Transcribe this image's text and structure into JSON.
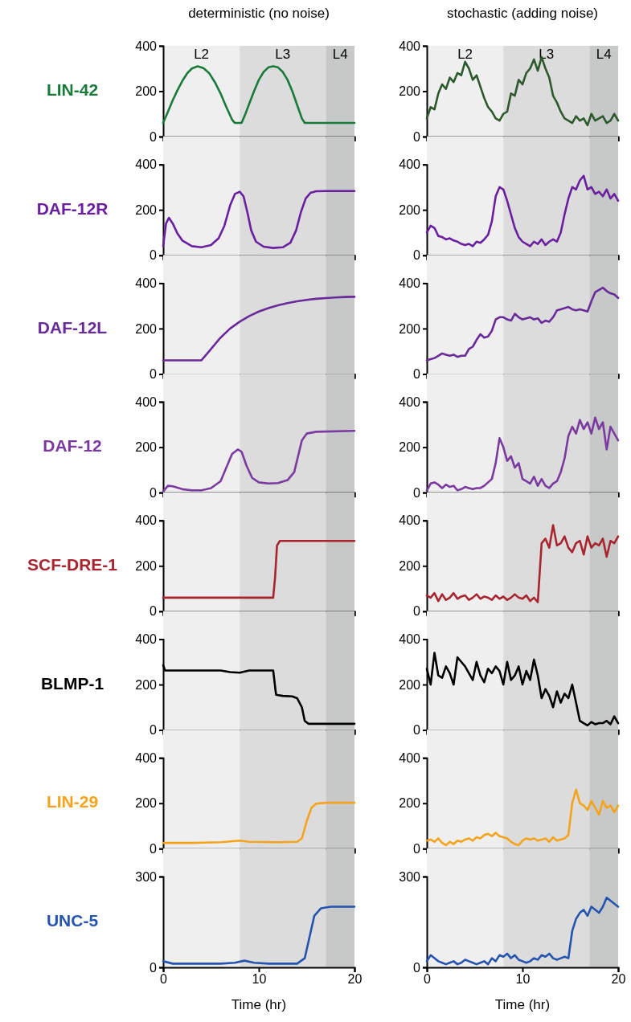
{
  "chart_data": [
    {
      "type": "line",
      "title": "deterministic (no noise)",
      "ylabel": "LIN-42",
      "x": [
        0,
        0.5,
        1,
        1.5,
        2,
        2.5,
        3,
        3.6,
        4.2,
        4.8,
        5.4,
        6,
        6.6,
        7.2,
        7.5,
        8.2,
        8.6,
        9,
        9.5,
        10,
        10.5,
        11,
        11.5,
        12,
        12.5,
        13,
        13.5,
        14,
        14.5,
        14.8,
        20
      ],
      "series": [
        {
          "color": "#1a7a3a",
          "values": [
            60,
            110,
            160,
            205,
            245,
            278,
            300,
            310,
            302,
            280,
            240,
            190,
            130,
            75,
            60,
            60,
            100,
            145,
            200,
            250,
            285,
            305,
            310,
            305,
            285,
            250,
            200,
            140,
            80,
            60,
            60
          ]
        }
      ],
      "xlim": [
        0,
        20
      ],
      "xticks": [
        0,
        10,
        20
      ],
      "ylim": [
        0,
        400
      ],
      "yticks": [
        0,
        200,
        400
      ],
      "tick_labels": "y",
      "bands": [
        {
          "axis": "x",
          "from": 0,
          "to": 8,
          "label": "L2",
          "color": "#efefef"
        },
        {
          "axis": "x",
          "from": 8,
          "to": 17,
          "label": "L3",
          "color": "#dcdcdc"
        },
        {
          "axis": "x",
          "from": 17,
          "to": 20,
          "label": "L4",
          "color": "#c7c9c9"
        }
      ]
    },
    {
      "type": "line",
      "title": "stochastic (adding noise)",
      "x": [
        0,
        0.4,
        0.8,
        1.2,
        1.6,
        2,
        2.4,
        2.8,
        3.2,
        3.6,
        4,
        4.4,
        4.8,
        5.2,
        5.6,
        6,
        6.4,
        6.8,
        7.2,
        7.6,
        8,
        8.4,
        8.8,
        9.2,
        9.6,
        10,
        10.4,
        10.8,
        11.2,
        11.6,
        12,
        12.4,
        12.8,
        13.2,
        13.6,
        14,
        14.4,
        14.8,
        15.2,
        15.6,
        16,
        16.4,
        16.8,
        17.2,
        17.6,
        18,
        18.4,
        18.8,
        19.2,
        19.6,
        20
      ],
      "series": [
        {
          "color": "#2d5a2d",
          "values": [
            80,
            130,
            120,
            190,
            230,
            210,
            260,
            240,
            280,
            270,
            330,
            300,
            250,
            270,
            220,
            170,
            130,
            110,
            80,
            70,
            100,
            110,
            190,
            180,
            250,
            230,
            280,
            300,
            340,
            290,
            350,
            300,
            260,
            180,
            150,
            110,
            80,
            70,
            60,
            90,
            70,
            80,
            50,
            100,
            70,
            80,
            90,
            60,
            70,
            100,
            70
          ]
        }
      ],
      "xlim": [
        0,
        20
      ],
      "xticks": [
        0,
        10,
        20
      ],
      "ylim": [
        0,
        400
      ],
      "yticks": [
        0,
        200,
        400
      ],
      "tick_labels": "y",
      "bands": [
        {
          "axis": "x",
          "from": 0,
          "to": 8,
          "label": "L2",
          "color": "#efefef"
        },
        {
          "axis": "x",
          "from": 8,
          "to": 17,
          "label": "L3",
          "color": "#dcdcdc"
        },
        {
          "axis": "x",
          "from": 17,
          "to": 20,
          "label": "L4",
          "color": "#c7c9c9"
        }
      ]
    },
    {
      "type": "line",
      "ylabel": "DAF-12R",
      "x": [
        0,
        0.3,
        0.6,
        1,
        1.5,
        2,
        3,
        4,
        5,
        5.8,
        6.4,
        7,
        7.5,
        8,
        8.4,
        8.8,
        9.2,
        9.7,
        10.5,
        11.5,
        12.5,
        13.3,
        13.9,
        14.4,
        14.9,
        15.4,
        16,
        17,
        20
      ],
      "series": [
        {
          "color": "#6a1fa0",
          "values": [
            40,
            140,
            165,
            140,
            95,
            65,
            40,
            35,
            45,
            75,
            130,
            220,
            270,
            280,
            260,
            190,
            110,
            60,
            38,
            32,
            35,
            55,
            110,
            190,
            250,
            275,
            282,
            283,
            283
          ]
        }
      ],
      "xlim": [
        0,
        20
      ],
      "xticks": [
        0,
        10,
        20
      ],
      "ylim": [
        0,
        400
      ],
      "yticks": [
        0,
        200,
        400
      ],
      "tick_labels": "y",
      "bands": [
        {
          "axis": "x",
          "from": 0,
          "to": 8,
          "color": "#efefef"
        },
        {
          "axis": "x",
          "from": 8,
          "to": 17,
          "color": "#dcdcdc"
        },
        {
          "axis": "x",
          "from": 17,
          "to": 20,
          "color": "#c7c9c9"
        }
      ]
    },
    {
      "type": "line",
      "x": [
        0,
        0.4,
        0.8,
        1.2,
        1.6,
        2,
        2.4,
        2.8,
        3.2,
        3.6,
        4,
        4.4,
        4.8,
        5.2,
        5.6,
        6,
        6.4,
        6.8,
        7.2,
        7.6,
        8,
        8.4,
        8.8,
        9.2,
        9.6,
        10,
        10.4,
        10.8,
        11.2,
        11.6,
        12,
        12.4,
        12.8,
        13.2,
        13.6,
        14,
        14.4,
        14.8,
        15.2,
        15.6,
        16,
        16.4,
        16.8,
        17.2,
        17.6,
        18,
        18.4,
        18.8,
        19.2,
        19.6,
        20
      ],
      "series": [
        {
          "color": "#6a1fa0",
          "values": [
            100,
            130,
            120,
            85,
            80,
            70,
            75,
            65,
            60,
            50,
            45,
            50,
            40,
            60,
            55,
            70,
            90,
            150,
            260,
            300,
            290,
            240,
            180,
            120,
            80,
            60,
            50,
            40,
            60,
            50,
            70,
            45,
            60,
            70,
            60,
            100,
            180,
            250,
            300,
            290,
            330,
            350,
            290,
            300,
            270,
            280,
            260,
            290,
            250,
            270,
            240
          ]
        }
      ],
      "xlim": [
        0,
        20
      ],
      "xticks": [
        0,
        10,
        20
      ],
      "ylim": [
        0,
        400
      ],
      "yticks": [
        0,
        200,
        400
      ],
      "tick_labels": "y",
      "bands": [
        {
          "axis": "x",
          "from": 0,
          "to": 8,
          "color": "#efefef"
        },
        {
          "axis": "x",
          "from": 8,
          "to": 17,
          "color": "#dcdcdc"
        },
        {
          "axis": "x",
          "from": 17,
          "to": 20,
          "color": "#c7c9c9"
        }
      ]
    },
    {
      "type": "line",
      "ylabel": "DAF-12L",
      "x": [
        0,
        4,
        5,
        6,
        7,
        8,
        9,
        10,
        11,
        12,
        13,
        14,
        15,
        16,
        17,
        18,
        19,
        20
      ],
      "series": [
        {
          "color": "#6a2a9a",
          "values": [
            60,
            60,
            110,
            160,
            200,
            230,
            255,
            275,
            290,
            302,
            312,
            320,
            326,
            331,
            334,
            337,
            339,
            340
          ]
        }
      ],
      "xlim": [
        0,
        20
      ],
      "xticks": [
        0,
        10,
        20
      ],
      "ylim": [
        0,
        400
      ],
      "yticks": [
        0,
        200,
        400
      ],
      "tick_labels": "y",
      "bands": [
        {
          "axis": "x",
          "from": 0,
          "to": 8,
          "color": "#efefef"
        },
        {
          "axis": "x",
          "from": 8,
          "to": 17,
          "color": "#dcdcdc"
        },
        {
          "axis": "x",
          "from": 17,
          "to": 20,
          "color": "#c7c9c9"
        }
      ]
    },
    {
      "type": "line",
      "x": [
        0,
        0.4,
        0.8,
        1.2,
        1.6,
        2,
        2.4,
        2.8,
        3.2,
        3.6,
        4,
        4.4,
        4.8,
        5.2,
        5.6,
        6,
        6.4,
        6.8,
        7.2,
        7.6,
        8,
        8.4,
        8.8,
        9.2,
        9.6,
        10,
        10.4,
        10.8,
        11.2,
        11.6,
        12,
        12.4,
        12.8,
        13.2,
        13.6,
        14,
        14.4,
        14.8,
        15.2,
        15.6,
        16,
        16.4,
        16.8,
        17.2,
        17.6,
        18,
        18.4,
        18.8,
        19.2,
        19.6,
        20
      ],
      "series": [
        {
          "color": "#6a2a9a",
          "values": [
            60,
            65,
            70,
            80,
            90,
            85,
            80,
            85,
            75,
            80,
            80,
            110,
            120,
            150,
            175,
            160,
            165,
            190,
            240,
            250,
            250,
            240,
            235,
            265,
            250,
            240,
            245,
            250,
            240,
            245,
            225,
            235,
            230,
            250,
            280,
            285,
            290,
            295,
            285,
            280,
            285,
            280,
            275,
            320,
            360,
            370,
            380,
            365,
            355,
            350,
            335
          ]
        }
      ],
      "xlim": [
        0,
        20
      ],
      "xticks": [
        0,
        10,
        20
      ],
      "ylim": [
        0,
        400
      ],
      "yticks": [
        0,
        200,
        400
      ],
      "tick_labels": "y",
      "bands": [
        {
          "axis": "x",
          "from": 0,
          "to": 8,
          "color": "#efefef"
        },
        {
          "axis": "x",
          "from": 8,
          "to": 17,
          "color": "#dcdcdc"
        },
        {
          "axis": "x",
          "from": 17,
          "to": 20,
          "color": "#c7c9c9"
        }
      ]
    },
    {
      "type": "line",
      "ylabel": "DAF-12",
      "x": [
        0,
        0.5,
        1,
        2,
        3,
        4,
        5,
        6,
        6.6,
        7.2,
        7.8,
        8.2,
        8.7,
        9.3,
        10,
        11,
        12,
        13,
        13.7,
        14.1,
        14.5,
        15,
        16,
        20
      ],
      "series": [
        {
          "color": "#7b3aa0",
          "values": [
            5,
            30,
            28,
            15,
            10,
            10,
            20,
            50,
            110,
            170,
            190,
            180,
            120,
            65,
            45,
            40,
            42,
            55,
            90,
            160,
            230,
            260,
            268,
            272
          ]
        }
      ],
      "xlim": [
        0,
        20
      ],
      "xticks": [
        0,
        10,
        20
      ],
      "ylim": [
        0,
        400
      ],
      "yticks": [
        0,
        200,
        400
      ],
      "tick_labels": "y",
      "bands": [
        {
          "axis": "x",
          "from": 0,
          "to": 8,
          "color": "#efefef"
        },
        {
          "axis": "x",
          "from": 8,
          "to": 17,
          "color": "#dcdcdc"
        },
        {
          "axis": "x",
          "from": 17,
          "to": 20,
          "color": "#c7c9c9"
        }
      ]
    },
    {
      "type": "line",
      "x": [
        0,
        0.4,
        0.8,
        1.2,
        1.6,
        2,
        2.4,
        2.8,
        3.2,
        3.6,
        4,
        4.4,
        4.8,
        5.2,
        5.6,
        6,
        6.4,
        6.8,
        7.2,
        7.6,
        8,
        8.4,
        8.8,
        9.2,
        9.6,
        10,
        10.4,
        10.8,
        11.2,
        11.6,
        12,
        12.4,
        12.8,
        13.2,
        13.6,
        14,
        14.4,
        14.8,
        15.2,
        15.6,
        16,
        16.4,
        16.8,
        17.2,
        17.6,
        18,
        18.4,
        18.8,
        19.2,
        19.6,
        20
      ],
      "series": [
        {
          "color": "#7b3aa0",
          "values": [
            10,
            40,
            45,
            35,
            20,
            35,
            25,
            30,
            10,
            15,
            25,
            20,
            15,
            20,
            20,
            30,
            45,
            60,
            130,
            240,
            200,
            140,
            160,
            110,
            130,
            60,
            50,
            40,
            70,
            30,
            60,
            30,
            20,
            40,
            50,
            90,
            150,
            250,
            290,
            260,
            320,
            280,
            310,
            260,
            330,
            280,
            310,
            190,
            290,
            260,
            230
          ]
        }
      ],
      "xlim": [
        0,
        20
      ],
      "xticks": [
        0,
        10,
        20
      ],
      "ylim": [
        0,
        400
      ],
      "yticks": [
        0,
        200,
        400
      ],
      "tick_labels": "y",
      "bands": [
        {
          "axis": "x",
          "from": 0,
          "to": 8,
          "color": "#efefef"
        },
        {
          "axis": "x",
          "from": 8,
          "to": 17,
          "color": "#dcdcdc"
        },
        {
          "axis": "x",
          "from": 17,
          "to": 20,
          "color": "#c7c9c9"
        }
      ]
    },
    {
      "type": "line",
      "ylabel": "SCF-DRE-1",
      "x": [
        0,
        11.5,
        11.7,
        11.9,
        12.2,
        20
      ],
      "series": [
        {
          "color": "#a8242f",
          "values": [
            60,
            60,
            150,
            290,
            310,
            310
          ]
        }
      ],
      "xlim": [
        0,
        20
      ],
      "xticks": [
        0,
        10,
        20
      ],
      "ylim": [
        0,
        400
      ],
      "yticks": [
        0,
        200,
        400
      ],
      "tick_labels": "y",
      "bands": [
        {
          "axis": "x",
          "from": 0,
          "to": 8,
          "color": "#efefef"
        },
        {
          "axis": "x",
          "from": 8,
          "to": 17,
          "color": "#dcdcdc"
        },
        {
          "axis": "x",
          "from": 17,
          "to": 20,
          "color": "#c7c9c9"
        }
      ]
    },
    {
      "type": "line",
      "x": [
        0,
        0.4,
        0.8,
        1.2,
        1.6,
        2,
        2.4,
        2.8,
        3.2,
        3.6,
        4,
        4.4,
        4.8,
        5.2,
        5.6,
        6,
        6.4,
        6.8,
        7.2,
        7.6,
        8,
        8.4,
        8.8,
        9.2,
        9.6,
        10,
        10.4,
        10.8,
        11.2,
        11.6,
        12,
        12.4,
        12.8,
        13.2,
        13.6,
        14,
        14.4,
        14.8,
        15.2,
        15.6,
        16,
        16.4,
        16.8,
        17.2,
        17.6,
        18,
        18.4,
        18.8,
        19.2,
        19.6,
        20
      ],
      "series": [
        {
          "color": "#a8242f",
          "values": [
            70,
            60,
            80,
            45,
            75,
            50,
            60,
            80,
            55,
            65,
            70,
            50,
            60,
            75,
            55,
            65,
            60,
            50,
            70,
            55,
            65,
            50,
            60,
            75,
            60,
            55,
            70,
            45,
            60,
            40,
            300,
            320,
            280,
            380,
            290,
            300,
            330,
            280,
            260,
            300,
            310,
            250,
            330,
            280,
            300,
            290,
            320,
            240,
            310,
            300,
            330
          ]
        }
      ],
      "xlim": [
        0,
        20
      ],
      "xticks": [
        0,
        10,
        20
      ],
      "ylim": [
        0,
        400
      ],
      "yticks": [
        0,
        200,
        400
      ],
      "tick_labels": "y",
      "bands": [
        {
          "axis": "x",
          "from": 0,
          "to": 8,
          "color": "#efefef"
        },
        {
          "axis": "x",
          "from": 8,
          "to": 17,
          "color": "#dcdcdc"
        },
        {
          "axis": "x",
          "from": 17,
          "to": 20,
          "color": "#c7c9c9"
        }
      ]
    },
    {
      "type": "line",
      "ylabel": "BLMP-1",
      "x": [
        0,
        0.2,
        3,
        6,
        7,
        8,
        9,
        11.5,
        11.8,
        12.5,
        13.5,
        14,
        14.5,
        14.8,
        15.2,
        20
      ],
      "series": [
        {
          "color": "#000000",
          "values": [
            285,
            262,
            262,
            262,
            255,
            252,
            262,
            262,
            155,
            150,
            148,
            140,
            100,
            40,
            27,
            27
          ]
        }
      ],
      "xlim": [
        0,
        20
      ],
      "xticks": [
        0,
        10,
        20
      ],
      "ylim": [
        0,
        400
      ],
      "yticks": [
        0,
        200,
        400
      ],
      "tick_labels": "y",
      "bands": [
        {
          "axis": "x",
          "from": 0,
          "to": 8,
          "color": "#efefef"
        },
        {
          "axis": "x",
          "from": 8,
          "to": 17,
          "color": "#dcdcdc"
        },
        {
          "axis": "x",
          "from": 17,
          "to": 20,
          "color": "#c7c9c9"
        }
      ]
    },
    {
      "type": "line",
      "x": [
        0,
        0.4,
        0.8,
        1.2,
        1.6,
        2,
        2.4,
        2.8,
        3.2,
        3.6,
        4,
        4.4,
        4.8,
        5.2,
        5.6,
        6,
        6.4,
        6.8,
        7.2,
        7.6,
        8,
        8.4,
        8.8,
        9.2,
        9.6,
        10,
        10.4,
        10.8,
        11.2,
        11.6,
        12,
        12.4,
        12.8,
        13.2,
        13.6,
        14,
        14.4,
        14.8,
        15.2,
        15.6,
        16,
        16.4,
        16.8,
        17.2,
        17.6,
        18,
        18.4,
        18.8,
        19.2,
        19.6,
        20
      ],
      "series": [
        {
          "color": "#000000",
          "values": [
            270,
            200,
            340,
            240,
            230,
            280,
            250,
            200,
            320,
            300,
            280,
            250,
            220,
            300,
            240,
            210,
            270,
            250,
            280,
            260,
            200,
            300,
            220,
            240,
            280,
            200,
            260,
            220,
            310,
            240,
            140,
            180,
            150,
            100,
            170,
            120,
            160,
            140,
            200,
            120,
            40,
            30,
            20,
            35,
            25,
            30,
            30,
            40,
            25,
            60,
            30
          ]
        }
      ],
      "xlim": [
        0,
        20
      ],
      "xticks": [
        0,
        10,
        20
      ],
      "ylim": [
        0,
        400
      ],
      "yticks": [
        0,
        200,
        400
      ],
      "tick_labels": "y",
      "bands": [
        {
          "axis": "x",
          "from": 0,
          "to": 8,
          "color": "#efefef"
        },
        {
          "axis": "x",
          "from": 8,
          "to": 17,
          "color": "#dcdcdc"
        },
        {
          "axis": "x",
          "from": 17,
          "to": 20,
          "color": "#c7c9c9"
        }
      ]
    },
    {
      "type": "line",
      "ylabel": "LIN-29",
      "x": [
        0,
        3,
        6,
        8,
        9,
        12,
        14,
        14.5,
        15,
        15.5,
        16,
        17,
        20
      ],
      "series": [
        {
          "color": "#f5a31a",
          "values": [
            25,
            25,
            28,
            35,
            30,
            28,
            30,
            45,
            120,
            180,
            198,
            202,
            202
          ]
        }
      ],
      "xlim": [
        0,
        20
      ],
      "xticks": [
        0,
        10,
        20
      ],
      "ylim": [
        0,
        400
      ],
      "yticks": [
        0,
        200,
        400
      ],
      "tick_labels": "y",
      "bands": [
        {
          "axis": "x",
          "from": 0,
          "to": 8,
          "color": "#efefef"
        },
        {
          "axis": "x",
          "from": 8,
          "to": 17,
          "color": "#dcdcdc"
        },
        {
          "axis": "x",
          "from": 17,
          "to": 20,
          "color": "#c7c9c9"
        }
      ]
    },
    {
      "type": "line",
      "x": [
        0,
        0.4,
        0.8,
        1.2,
        1.6,
        2,
        2.4,
        2.8,
        3.2,
        3.6,
        4,
        4.4,
        4.8,
        5.2,
        5.6,
        6,
        6.4,
        6.8,
        7.2,
        7.6,
        8,
        8.4,
        8.8,
        9.2,
        9.6,
        10,
        10.4,
        10.8,
        11.2,
        11.6,
        12,
        12.4,
        12.8,
        13.2,
        13.6,
        14,
        14.4,
        14.8,
        15.2,
        15.6,
        16,
        16.4,
        16.8,
        17.2,
        17.6,
        18,
        18.4,
        18.8,
        19.2,
        19.6,
        20
      ],
      "series": [
        {
          "color": "#f5a31a",
          "values": [
            35,
            40,
            30,
            45,
            25,
            15,
            30,
            20,
            35,
            30,
            40,
            45,
            35,
            50,
            45,
            60,
            65,
            55,
            70,
            55,
            50,
            45,
            30,
            20,
            15,
            35,
            45,
            40,
            45,
            35,
            40,
            45,
            30,
            50,
            35,
            40,
            45,
            60,
            200,
            260,
            200,
            190,
            170,
            210,
            180,
            150,
            210,
            180,
            190,
            160,
            190
          ]
        }
      ],
      "xlim": [
        0,
        20
      ],
      "xticks": [
        0,
        10,
        20
      ],
      "ylim": [
        0,
        400
      ],
      "yticks": [
        0,
        200,
        400
      ],
      "tick_labels": "y",
      "bands": [
        {
          "axis": "x",
          "from": 0,
          "to": 8,
          "color": "#efefef"
        },
        {
          "axis": "x",
          "from": 8,
          "to": 17,
          "color": "#dcdcdc"
        },
        {
          "axis": "x",
          "from": 17,
          "to": 20,
          "color": "#c7c9c9"
        }
      ]
    },
    {
      "type": "line",
      "ylabel": "UNC-5",
      "xlabel": "Time (hr)",
      "x": [
        0,
        1,
        6,
        7.5,
        8.5,
        9.5,
        11,
        14,
        14.8,
        15.3,
        15.8,
        16.5,
        17.5,
        20
      ],
      "series": [
        {
          "color": "#2554b0",
          "values": [
            20,
            12,
            12,
            15,
            22,
            15,
            12,
            12,
            30,
            100,
            170,
            195,
            200,
            200
          ]
        }
      ],
      "xlim": [
        0,
        20
      ],
      "xticks": [
        0,
        10,
        20
      ],
      "ylim": [
        0,
        300
      ],
      "yticks": [
        0,
        300
      ],
      "bands": [
        {
          "axis": "x",
          "from": 0,
          "to": 8,
          "color": "#efefef"
        },
        {
          "axis": "x",
          "from": 8,
          "to": 17,
          "color": "#dcdcdc"
        },
        {
          "axis": "x",
          "from": 17,
          "to": 20,
          "color": "#c7c9c9"
        }
      ]
    },
    {
      "type": "line",
      "xlabel": "Time (hr)",
      "x": [
        0,
        0.4,
        0.8,
        1.2,
        1.6,
        2,
        2.4,
        2.8,
        3.2,
        3.6,
        4,
        4.4,
        4.8,
        5.2,
        5.6,
        6,
        6.4,
        6.8,
        7.2,
        7.6,
        8,
        8.4,
        8.8,
        9.2,
        9.6,
        10,
        10.4,
        10.8,
        11.2,
        11.6,
        12,
        12.4,
        12.8,
        13.2,
        13.6,
        14,
        14.4,
        14.8,
        15.2,
        15.6,
        16,
        16.4,
        16.8,
        17.2,
        17.6,
        18,
        18.4,
        18.8,
        19.2,
        19.6,
        20
      ],
      "series": [
        {
          "color": "#2554b0",
          "values": [
            20,
            40,
            30,
            20,
            15,
            10,
            15,
            20,
            10,
            15,
            25,
            20,
            15,
            10,
            15,
            20,
            10,
            30,
            20,
            40,
            35,
            45,
            30,
            40,
            25,
            20,
            15,
            20,
            30,
            25,
            40,
            35,
            45,
            30,
            25,
            30,
            35,
            30,
            120,
            160,
            180,
            190,
            170,
            200,
            190,
            180,
            200,
            230,
            220,
            210,
            200
          ]
        }
      ],
      "xlim": [
        0,
        20
      ],
      "xticks": [
        0,
        10,
        20
      ],
      "ylim": [
        0,
        300
      ],
      "yticks": [
        0,
        300
      ],
      "bands": [
        {
          "axis": "x",
          "from": 0,
          "to": 8,
          "color": "#efefef"
        },
        {
          "axis": "x",
          "from": 8,
          "to": 17,
          "color": "#dcdcdc"
        },
        {
          "axis": "x",
          "from": 17,
          "to": 20,
          "color": "#c7c9c9"
        }
      ]
    }
  ]
}
